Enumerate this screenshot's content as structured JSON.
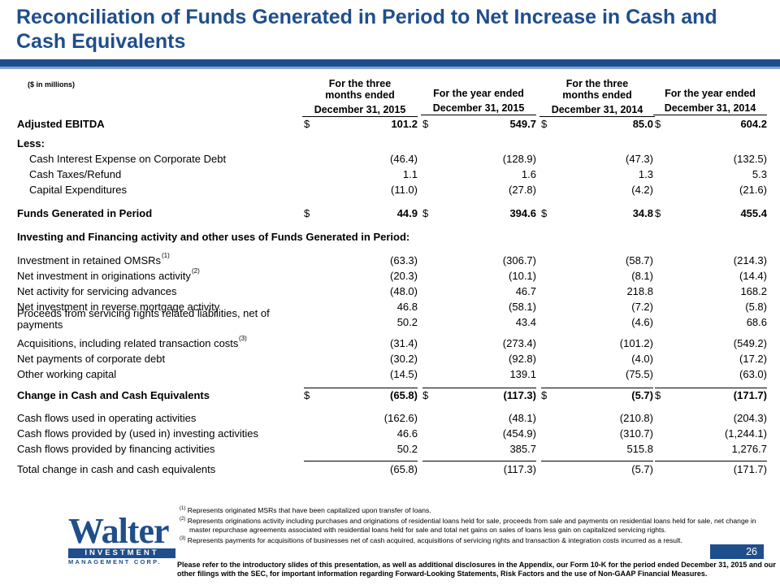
{
  "title": "Reconciliation of Funds Generated in Period to Net Increase in Cash and Cash Equivalents",
  "units": "($ in millions)",
  "columns": [
    {
      "top": "For the three months ended",
      "date": "December 31, 2015"
    },
    {
      "top": "For the year ended",
      "date": "December 31, 2015"
    },
    {
      "top": "For the three months ended",
      "date": "December 31, 2014"
    },
    {
      "top": "For the year ended",
      "date": "December 31, 2014"
    }
  ],
  "rows": [
    {
      "label": "Adjusted EBITDA",
      "values": [
        "101.2",
        "549.7",
        "85.0",
        "604.2"
      ],
      "dollar": "$"
    },
    {
      "label": "Less:"
    },
    {
      "label": "Cash Interest Expense on Corporate Debt",
      "values": [
        "(46.4)",
        "(128.9)",
        "(47.3)",
        "(132.5)"
      ]
    },
    {
      "label": "Cash Taxes/Refund",
      "values": [
        "1.1",
        "1.6",
        "1.3",
        "5.3"
      ]
    },
    {
      "label": "Capital Expenditures",
      "values": [
        "(11.0)",
        "(27.8)",
        "(4.2)",
        "(21.6)"
      ]
    },
    {
      "label": "Funds Generated in Period",
      "values": [
        "44.9",
        "394.6",
        "34.8",
        "455.4"
      ],
      "dollar": "$"
    },
    {
      "label": "Investing and Financing activity and other uses of Funds Generated in Period:"
    },
    {
      "label": "Investment in retained OMSRs",
      "sup": "(1)",
      "values": [
        "(63.3)",
        "(306.7)",
        "(58.7)",
        "(214.3)"
      ]
    },
    {
      "label": "Net investment in originations activity",
      "sup": "(2)",
      "values": [
        "(20.3)",
        "(10.1)",
        "(8.1)",
        "(14.4)"
      ]
    },
    {
      "label": "Net activity for servicing advances",
      "values": [
        "(48.0)",
        "46.7",
        "218.8",
        "168.2"
      ]
    },
    {
      "label": "Net investment in reverse mortgage activity",
      "values": [
        "46.8",
        "(58.1)",
        "(7.2)",
        "(5.8)"
      ]
    },
    {
      "label": "Proceeds from servicing rights related liabilities, net of",
      "label2": "payments",
      "values": [
        "50.2",
        "43.4",
        "(4.6)",
        "68.6"
      ]
    },
    {
      "label": "Acquisitions, including related transaction costs",
      "sup": "(3)",
      "values": [
        "(31.4)",
        "(273.4)",
        "(101.2)",
        "(549.2)"
      ]
    },
    {
      "label": "Net payments of corporate debt",
      "values": [
        "(30.2)",
        "(92.8)",
        "(4.0)",
        "(17.2)"
      ]
    },
    {
      "label": "Other working capital",
      "values": [
        "(14.5)",
        "139.1",
        "(75.5)",
        "(63.0)"
      ]
    },
    {
      "label": "Change in Cash and Cash Equivalents",
      "values": [
        "(65.8)",
        "(117.3)",
        "(5.7)",
        "(171.7)"
      ],
      "dollar": "$"
    },
    {
      "label": "Cash flows used in operating activities",
      "values": [
        "(162.6)",
        "(48.1)",
        "(210.8)",
        "(204.3)"
      ]
    },
    {
      "label": "Cash flows provided by (used in) investing activities",
      "values": [
        "46.6",
        "(454.9)",
        "(310.7)",
        "(1,244.1)"
      ]
    },
    {
      "label": "Cash flows provided by financing activities",
      "values": [
        "50.2",
        "385.7",
        "515.8",
        "1,276.7"
      ]
    },
    {
      "label": "Total change in cash and cash equivalents",
      "values": [
        "(65.8)",
        "(117.3)",
        "(5.7)",
        "(171.7)"
      ]
    }
  ],
  "footnotes": [
    {
      "mark": "(1)",
      "text": "Represents originated MSRs that have been capitalized upon transfer of loans."
    },
    {
      "mark": "(2)",
      "text": "Represents originations activity including purchases and originations of residential loans held for sale, proceeds from sale and payments on residential loans held for sale, net change in master repurchase agreements associated with residential loans held for sale and total net gains on sales of loans less gain on capitalized servicing rights."
    },
    {
      "mark": "(3)",
      "text": "Represents payments for acquisitions of businesses net of cash acquired, acquisitions of servicing rights and transaction & integration costs incurred as a result."
    }
  ],
  "logo": {
    "word": "Walter",
    "band": "INVESTMENT",
    "sub": "MANAGEMENT CORP."
  },
  "page_number": "26",
  "footer": "Please refer to the introductory slides of this presentation, as well as additional disclosures in the Appendix, our Form 10-K for the period ended December 31, 2015 and our other filings with the SEC, for important information regarding Forward-Looking Statements, Risk Factors and the use of Non-GAAP Financial Measures.",
  "colors": {
    "brand_blue": "#1f4e8c",
    "band_light": "#7fa6d4"
  }
}
